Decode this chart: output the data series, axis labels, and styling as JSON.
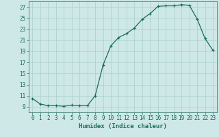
{
  "x": [
    0,
    1,
    2,
    3,
    4,
    5,
    6,
    7,
    8,
    9,
    10,
    11,
    12,
    13,
    14,
    15,
    16,
    17,
    18,
    19,
    20,
    21,
    22,
    23
  ],
  "y": [
    10.5,
    9.5,
    9.2,
    9.2,
    9.1,
    9.3,
    9.2,
    9.2,
    11.0,
    16.5,
    20.0,
    21.5,
    22.2,
    23.2,
    24.8,
    25.8,
    27.1,
    27.2,
    27.2,
    27.4,
    27.3,
    24.8,
    21.3,
    19.2
  ],
  "line_color": "#1a6b5a",
  "marker": "+",
  "background_color": "#cde8e6",
  "grid_color": "#aacfcc",
  "xlabel": "Humidex (Indice chaleur)",
  "ylabel": "",
  "xlim": [
    -0.5,
    23.5
  ],
  "ylim": [
    8.0,
    28.0
  ],
  "yticks": [
    9,
    11,
    13,
    15,
    17,
    19,
    21,
    23,
    25,
    27
  ],
  "xticks": [
    0,
    1,
    2,
    3,
    4,
    5,
    6,
    7,
    8,
    9,
    10,
    11,
    12,
    13,
    14,
    15,
    16,
    17,
    18,
    19,
    20,
    21,
    22,
    23
  ],
  "xlabel_fontsize": 6.5,
  "tick_fontsize": 5.5,
  "linewidth": 0.9,
  "markersize": 3.5,
  "markeredgewidth": 0.9
}
